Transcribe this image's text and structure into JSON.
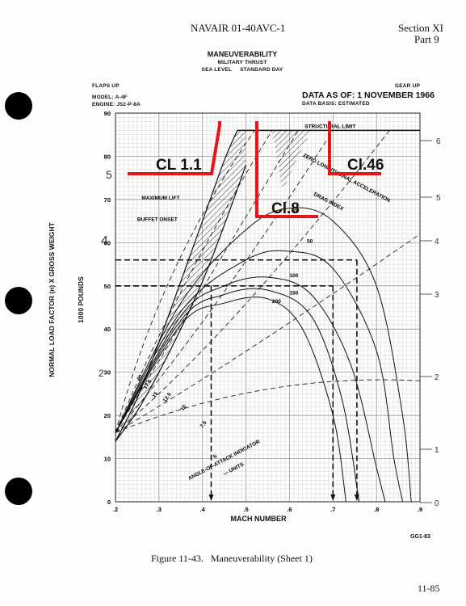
{
  "header": {
    "doc_id": "NAVAIR 01-40AVC-1",
    "section": "Section XI",
    "part": "Part 9"
  },
  "page_number": "11-85",
  "figure_caption": "Figure 11-43.   Maneuverability (Sheet 1)",
  "code_label": "GG1-83",
  "chart_data": {
    "type": "line",
    "title": "MANEUVERABILITY",
    "subtitle_1": "MILITARY THRUST",
    "subtitle_2": "SEA LEVEL     STANDARD DAY",
    "config_left": "FLAPS UP",
    "config_right": "GEAR UP",
    "model": "MODEL: A-4F",
    "engine": "ENGINE: J52-P-8A",
    "data_as_of": "DATA AS OF: 1 NOVEMBER 1966",
    "data_basis": "DATA BASIS: ESTIMATED",
    "xlabel": "MACH NUMBER",
    "ylabel_1": "NORMAL LOAD FACTOR (n) X GROSS WEIGHT",
    "ylabel_2": "1000 POUNDS",
    "xlim": [
      0.2,
      0.9
    ],
    "ylim": [
      0,
      90
    ],
    "x_ticks": [
      ".2",
      ".3",
      ".4",
      ".5",
      ".6",
      ".7",
      ".8",
      ".9"
    ],
    "y_ticks": [
      "0",
      "10",
      "20",
      "30",
      "40",
      "50",
      "60",
      "70",
      "80",
      "90"
    ],
    "grid": true,
    "structural_limit": {
      "label": "STRUCTURAL LIMIT",
      "value": 86
    },
    "labels": {
      "maximum_lift": "MAXIMUM LIFT",
      "buffet_onset": "BUFFET ONSET",
      "zero_accel": "ZERO LONGITUDINAL ACCELERATION",
      "drag_index": "DRAG INDEX",
      "aoa_1": "ANGLE-OF-ATTACK INDICATOR",
      "aoa_2": "— UNITS"
    },
    "maximum_lift_curve": {
      "x": [
        0.2,
        0.25,
        0.3,
        0.35,
        0.4,
        0.45,
        0.48
      ],
      "y": [
        14,
        24,
        37,
        51,
        65,
        79,
        86
      ]
    },
    "buffet_onset_curve": {
      "x": [
        0.2,
        0.25,
        0.3,
        0.35,
        0.4,
        0.45,
        0.5
      ],
      "y": [
        14,
        21,
        30,
        40,
        51,
        64,
        78
      ]
    },
    "aoa_lines": [
      {
        "label": "20",
        "x_end": 0.52,
        "y_end": 86
      },
      {
        "label": "17.5",
        "x_end": 0.56,
        "y_end": 86
      },
      {
        "label": "15",
        "x_end": 0.62,
        "y_end": 86
      },
      {
        "label": "12.5",
        "x_end": 0.7,
        "y_end": 86
      },
      {
        "label": "10",
        "x_end": 0.83,
        "y_end": 86
      },
      {
        "label": "7.5",
        "x_end": 0.9,
        "y_end": 62
      },
      {
        "label": "5",
        "x_end": 0.9,
        "y_end": 28
      }
    ],
    "drag_index_curves": [
      {
        "label": "0",
        "x": [
          0.2,
          0.35,
          0.5,
          0.6,
          0.7,
          0.8,
          0.86,
          0.88
        ],
        "y": [
          16,
          46,
          63,
          68,
          65,
          50,
          20,
          0
        ]
      },
      {
        "label": "50",
        "x": [
          0.2,
          0.35,
          0.5,
          0.6,
          0.7,
          0.8,
          0.84,
          0.86
        ],
        "y": [
          16,
          44,
          56,
          58,
          54,
          35,
          10,
          0
        ]
      },
      {
        "label": "100",
        "x": [
          0.2,
          0.35,
          0.45,
          0.55,
          0.65,
          0.74,
          0.8,
          0.82
        ],
        "y": [
          16,
          43,
          50,
          52,
          48,
          32,
          8,
          0
        ]
      },
      {
        "label": "150",
        "x": [
          0.2,
          0.35,
          0.45,
          0.55,
          0.65,
          0.72,
          0.76
        ],
        "y": [
          16,
          42,
          48,
          49,
          43,
          24,
          0
        ]
      },
      {
        "label": "200",
        "x": [
          0.2,
          0.35,
          0.45,
          0.55,
          0.63,
          0.7,
          0.73
        ],
        "y": [
          16,
          41,
          46,
          47,
          40,
          20,
          0
        ]
      }
    ],
    "guide_lines": [
      {
        "y": 56,
        "x_end": 0.755,
        "x_drop": 0.755
      },
      {
        "y": 50,
        "x_end": 0.7,
        "x_drop": 0.7
      },
      {
        "y": 50,
        "x_end": 0.42,
        "x_drop": 0.42
      }
    ]
  },
  "annotations": {
    "cl_1": "CL 1.1",
    "cl_2": "Cl.8",
    "cl_3": "Cl.46",
    "margin_left": [
      "5",
      "4",
      "2"
    ],
    "margin_right": [
      "6",
      "5",
      "4",
      "3",
      "2",
      "1",
      "0"
    ]
  }
}
